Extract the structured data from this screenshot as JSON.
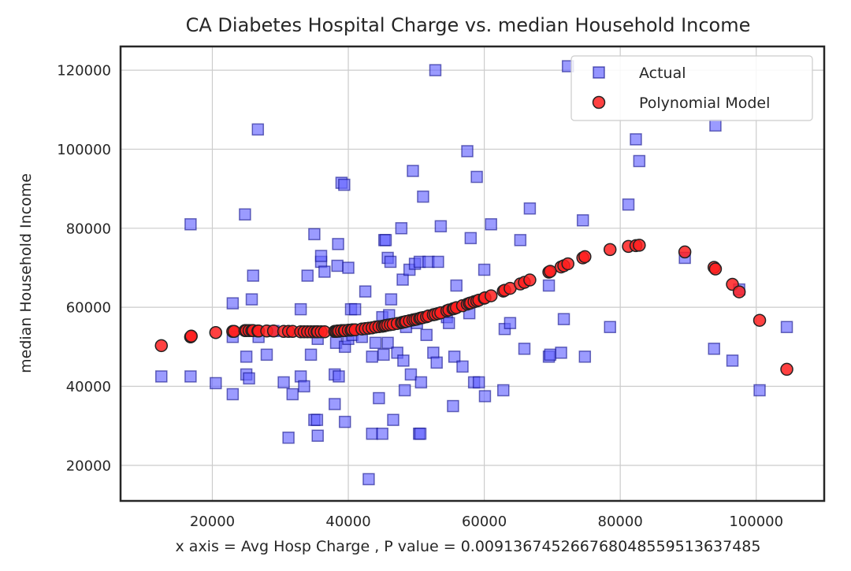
{
  "chart_data": {
    "type": "scatter",
    "title": "CA Diabetes Hospital Charge vs. median Household Income",
    "xlabel": "x axis = Avg Hosp Charge , P value = 0.009136745266768048559513637485",
    "ylabel": "median Household Income",
    "xlim": [
      6500,
      110000
    ],
    "ylim": [
      11000,
      126000
    ],
    "xticks": [
      20000,
      40000,
      60000,
      80000,
      100000
    ],
    "yticks": [
      20000,
      40000,
      60000,
      80000,
      100000,
      120000
    ],
    "grid": true,
    "legend_position": "top-right",
    "series": [
      {
        "name": "Actual",
        "marker": "square",
        "color": "#6666ff",
        "points": [
          [
            12500,
            42500
          ],
          [
            16800,
            81000
          ],
          [
            16800,
            42500
          ],
          [
            20500,
            40800
          ],
          [
            23000,
            61000
          ],
          [
            23000,
            52500
          ],
          [
            23000,
            38000
          ],
          [
            24800,
            83500
          ],
          [
            25000,
            47500
          ],
          [
            25000,
            43000
          ],
          [
            25400,
            42000
          ],
          [
            25800,
            62000
          ],
          [
            26000,
            68000
          ],
          [
            26700,
            105000
          ],
          [
            26800,
            52500
          ],
          [
            28000,
            48000
          ],
          [
            29000,
            54000
          ],
          [
            30500,
            41000
          ],
          [
            31200,
            27000
          ],
          [
            31800,
            38000
          ],
          [
            33000,
            42500
          ],
          [
            33000,
            59500
          ],
          [
            33500,
            40000
          ],
          [
            34000,
            68000
          ],
          [
            34500,
            48000
          ],
          [
            35000,
            78500
          ],
          [
            35000,
            31500
          ],
          [
            35400,
            31500
          ],
          [
            35500,
            27500
          ],
          [
            35500,
            52000
          ],
          [
            36000,
            71500
          ],
          [
            36000,
            73000
          ],
          [
            36500,
            69000
          ],
          [
            38000,
            43000
          ],
          [
            38000,
            35500
          ],
          [
            38200,
            51000
          ],
          [
            38400,
            70500
          ],
          [
            38600,
            42500
          ],
          [
            38500,
            76000
          ],
          [
            39000,
            91500
          ],
          [
            39400,
            91000
          ],
          [
            39500,
            31000
          ],
          [
            39500,
            50000
          ],
          [
            40000,
            70000
          ],
          [
            40000,
            52000
          ],
          [
            40400,
            59500
          ],
          [
            40600,
            53000
          ],
          [
            41000,
            59500
          ],
          [
            42000,
            52500
          ],
          [
            42500,
            64000
          ],
          [
            43000,
            16500
          ],
          [
            43500,
            47500
          ],
          [
            43500,
            28000
          ],
          [
            44000,
            51000
          ],
          [
            44500,
            37000
          ],
          [
            45000,
            57500
          ],
          [
            45000,
            28000
          ],
          [
            45200,
            48000
          ],
          [
            45300,
            77000
          ],
          [
            45500,
            77000
          ],
          [
            45800,
            72500
          ],
          [
            46200,
            71500
          ],
          [
            46300,
            62000
          ],
          [
            46000,
            58000
          ],
          [
            45800,
            51000
          ],
          [
            46600,
            31500
          ],
          [
            47200,
            48500
          ],
          [
            47800,
            80000
          ],
          [
            48000,
            67000
          ],
          [
            48100,
            46500
          ],
          [
            48300,
            39000
          ],
          [
            48500,
            55000
          ],
          [
            49000,
            69500
          ],
          [
            49200,
            43000
          ],
          [
            49500,
            94500
          ],
          [
            49800,
            71000
          ],
          [
            50100,
            56000
          ],
          [
            50400,
            28000
          ],
          [
            50500,
            71500
          ],
          [
            50600,
            28000
          ],
          [
            50700,
            41000
          ],
          [
            51000,
            88000
          ],
          [
            51500,
            53000
          ],
          [
            51800,
            71500
          ],
          [
            52500,
            48500
          ],
          [
            52800,
            120000
          ],
          [
            53000,
            46000
          ],
          [
            53200,
            71500
          ],
          [
            53600,
            80500
          ],
          [
            54500,
            57500
          ],
          [
            54800,
            56000
          ],
          [
            55400,
            35000
          ],
          [
            55600,
            47500
          ],
          [
            55900,
            65500
          ],
          [
            56800,
            45000
          ],
          [
            57500,
            99500
          ],
          [
            57800,
            58500
          ],
          [
            58000,
            77500
          ],
          [
            58500,
            41000
          ],
          [
            58900,
            93000
          ],
          [
            59200,
            41000
          ],
          [
            60000,
            69500
          ],
          [
            60100,
            37500
          ],
          [
            61000,
            81000
          ],
          [
            62800,
            39000
          ],
          [
            63000,
            54500
          ],
          [
            63800,
            56000
          ],
          [
            65300,
            77000
          ],
          [
            65900,
            49500
          ],
          [
            66700,
            85000
          ],
          [
            69500,
            47500
          ],
          [
            69500,
            65500
          ],
          [
            69700,
            48000
          ],
          [
            71300,
            48500
          ],
          [
            71700,
            57000
          ],
          [
            72300,
            121000
          ],
          [
            74500,
            82000
          ],
          [
            74800,
            47500
          ],
          [
            78500,
            55000
          ],
          [
            81200,
            86000
          ],
          [
            82300,
            102500
          ],
          [
            82800,
            97000
          ],
          [
            89500,
            72500
          ],
          [
            93800,
            49500
          ],
          [
            94000,
            106000
          ],
          [
            96500,
            46500
          ],
          [
            97500,
            64500
          ],
          [
            100500,
            39000
          ],
          [
            104500,
            55000
          ]
        ]
      },
      {
        "name": "Polynomial Model",
        "marker": "circle",
        "color": "#ff2020",
        "points": [
          [
            12500,
            50300
          ],
          [
            16800,
            52500
          ],
          [
            16900,
            52700
          ],
          [
            20500,
            53600
          ],
          [
            23000,
            53900
          ],
          [
            23200,
            53900
          ],
          [
            24800,
            54100
          ],
          [
            25000,
            54100
          ],
          [
            25400,
            54100
          ],
          [
            25800,
            54100
          ],
          [
            26000,
            54100
          ],
          [
            26700,
            54000
          ],
          [
            26800,
            54000
          ],
          [
            28000,
            54000
          ],
          [
            29000,
            54000
          ],
          [
            30500,
            53900
          ],
          [
            31200,
            53900
          ],
          [
            31800,
            53900
          ],
          [
            33000,
            53800
          ],
          [
            33500,
            53800
          ],
          [
            34000,
            53800
          ],
          [
            34500,
            53800
          ],
          [
            35000,
            53800
          ],
          [
            35400,
            53800
          ],
          [
            35500,
            53800
          ],
          [
            36000,
            53800
          ],
          [
            36500,
            53800
          ],
          [
            38000,
            53900
          ],
          [
            38200,
            53900
          ],
          [
            38400,
            54000
          ],
          [
            38600,
            54000
          ],
          [
            39000,
            54100
          ],
          [
            39400,
            54100
          ],
          [
            39500,
            54100
          ],
          [
            40000,
            54200
          ],
          [
            40400,
            54200
          ],
          [
            40600,
            54300
          ],
          [
            41000,
            54300
          ],
          [
            42000,
            54500
          ],
          [
            42500,
            54600
          ],
          [
            43000,
            54700
          ],
          [
            43500,
            54800
          ],
          [
            44000,
            55000
          ],
          [
            44500,
            55100
          ],
          [
            45000,
            55200
          ],
          [
            45300,
            55300
          ],
          [
            45500,
            55400
          ],
          [
            45800,
            55500
          ],
          [
            46200,
            55600
          ],
          [
            46600,
            55700
          ],
          [
            47200,
            55900
          ],
          [
            47800,
            56100
          ],
          [
            48000,
            56200
          ],
          [
            48300,
            56300
          ],
          [
            48500,
            56400
          ],
          [
            49000,
            56600
          ],
          [
            49500,
            56800
          ],
          [
            49800,
            56900
          ],
          [
            50100,
            57000
          ],
          [
            50500,
            57200
          ],
          [
            50700,
            57300
          ],
          [
            51000,
            57400
          ],
          [
            51500,
            57600
          ],
          [
            51800,
            57800
          ],
          [
            52500,
            58100
          ],
          [
            52800,
            58200
          ],
          [
            53200,
            58400
          ],
          [
            53600,
            58600
          ],
          [
            54500,
            59100
          ],
          [
            54800,
            59300
          ],
          [
            55400,
            59600
          ],
          [
            55600,
            59700
          ],
          [
            55900,
            59900
          ],
          [
            56800,
            60400
          ],
          [
            57500,
            60800
          ],
          [
            57800,
            61000
          ],
          [
            58000,
            61100
          ],
          [
            58500,
            61400
          ],
          [
            58900,
            61600
          ],
          [
            59200,
            61800
          ],
          [
            60000,
            62300
          ],
          [
            60100,
            62400
          ],
          [
            61000,
            62900
          ],
          [
            62800,
            64100
          ],
          [
            63000,
            64300
          ],
          [
            63800,
            64800
          ],
          [
            65300,
            65900
          ],
          [
            65900,
            66300
          ],
          [
            66700,
            66900
          ],
          [
            69500,
            68900
          ],
          [
            69700,
            69100
          ],
          [
            71300,
            70200
          ],
          [
            71700,
            70500
          ],
          [
            72300,
            71000
          ],
          [
            74500,
            72500
          ],
          [
            74800,
            72800
          ],
          [
            78500,
            74600
          ],
          [
            81200,
            75400
          ],
          [
            82300,
            75600
          ],
          [
            82800,
            75700
          ],
          [
            89500,
            74000
          ],
          [
            93800,
            70100
          ],
          [
            94000,
            69700
          ],
          [
            96500,
            65800
          ],
          [
            97500,
            63900
          ],
          [
            100500,
            56700
          ],
          [
            104500,
            44300
          ]
        ]
      }
    ]
  }
}
